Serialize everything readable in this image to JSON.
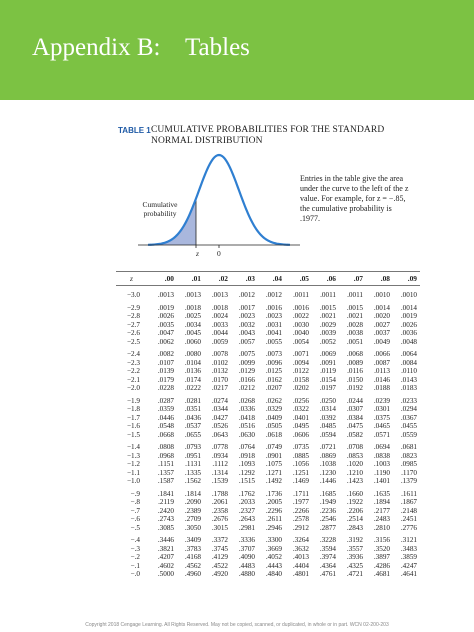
{
  "banner": {
    "title": "Appendix B:    Tables"
  },
  "table_label": "TABLE 1",
  "table_caption": "CUMULATIVE PROBABILITIES FOR THE STANDARD NORMAL DISTRIBUTION",
  "figure": {
    "entries_note": "Entries in the table give the area under the curve to the left of the z value. For example, for z = −.85, the cumulative probability is .1977.",
    "cumulative_label": "Cumulative probability",
    "z_label": "z",
    "zero_label": "0",
    "colors": {
      "curve": "#2f7fd1",
      "shade": "#a9b7dd"
    }
  },
  "table": {
    "z_header": "z",
    "headers": [
      ".00",
      ".01",
      ".02",
      ".03",
      ".04",
      ".05",
      ".06",
      ".07",
      ".08",
      ".09"
    ],
    "groups": [
      [
        {
          "z": "−3.0",
          "v": [
            ".0013",
            ".0013",
            ".0013",
            ".0012",
            ".0012",
            ".0011",
            ".0011",
            ".0011",
            ".0010",
            ".0010"
          ]
        }
      ],
      [
        {
          "z": "−2.9",
          "v": [
            ".0019",
            ".0018",
            ".0018",
            ".0017",
            ".0016",
            ".0016",
            ".0015",
            ".0015",
            ".0014",
            ".0014"
          ]
        },
        {
          "z": "−2.8",
          "v": [
            ".0026",
            ".0025",
            ".0024",
            ".0023",
            ".0023",
            ".0022",
            ".0021",
            ".0021",
            ".0020",
            ".0019"
          ]
        },
        {
          "z": "−2.7",
          "v": [
            ".0035",
            ".0034",
            ".0033",
            ".0032",
            ".0031",
            ".0030",
            ".0029",
            ".0028",
            ".0027",
            ".0026"
          ]
        },
        {
          "z": "−2.6",
          "v": [
            ".0047",
            ".0045",
            ".0044",
            ".0043",
            ".0041",
            ".0040",
            ".0039",
            ".0038",
            ".0037",
            ".0036"
          ]
        },
        {
          "z": "−2.5",
          "v": [
            ".0062",
            ".0060",
            ".0059",
            ".0057",
            ".0055",
            ".0054",
            ".0052",
            ".0051",
            ".0049",
            ".0048"
          ]
        }
      ],
      [
        {
          "z": "−2.4",
          "v": [
            ".0082",
            ".0080",
            ".0078",
            ".0075",
            ".0073",
            ".0071",
            ".0069",
            ".0068",
            ".0066",
            ".0064"
          ]
        },
        {
          "z": "−2.3",
          "v": [
            ".0107",
            ".0104",
            ".0102",
            ".0099",
            ".0096",
            ".0094",
            ".0091",
            ".0089",
            ".0087",
            ".0084"
          ]
        },
        {
          "z": "−2.2",
          "v": [
            ".0139",
            ".0136",
            ".0132",
            ".0129",
            ".0125",
            ".0122",
            ".0119",
            ".0116",
            ".0113",
            ".0110"
          ]
        },
        {
          "z": "−2.1",
          "v": [
            ".0179",
            ".0174",
            ".0170",
            ".0166",
            ".0162",
            ".0158",
            ".0154",
            ".0150",
            ".0146",
            ".0143"
          ]
        },
        {
          "z": "−2.0",
          "v": [
            ".0228",
            ".0222",
            ".0217",
            ".0212",
            ".0207",
            ".0202",
            ".0197",
            ".0192",
            ".0188",
            ".0183"
          ]
        }
      ],
      [
        {
          "z": "−1.9",
          "v": [
            ".0287",
            ".0281",
            ".0274",
            ".0268",
            ".0262",
            ".0256",
            ".0250",
            ".0244",
            ".0239",
            ".0233"
          ]
        },
        {
          "z": "−1.8",
          "v": [
            ".0359",
            ".0351",
            ".0344",
            ".0336",
            ".0329",
            ".0322",
            ".0314",
            ".0307",
            ".0301",
            ".0294"
          ]
        },
        {
          "z": "−1.7",
          "v": [
            ".0446",
            ".0436",
            ".0427",
            ".0418",
            ".0409",
            ".0401",
            ".0392",
            ".0384",
            ".0375",
            ".0367"
          ]
        },
        {
          "z": "−1.6",
          "v": [
            ".0548",
            ".0537",
            ".0526",
            ".0516",
            ".0505",
            ".0495",
            ".0485",
            ".0475",
            ".0465",
            ".0455"
          ]
        },
        {
          "z": "−1.5",
          "v": [
            ".0668",
            ".0655",
            ".0643",
            ".0630",
            ".0618",
            ".0606",
            ".0594",
            ".0582",
            ".0571",
            ".0559"
          ]
        }
      ],
      [
        {
          "z": "−1.4",
          "v": [
            ".0808",
            ".0793",
            ".0778",
            ".0764",
            ".0749",
            ".0735",
            ".0721",
            ".0708",
            ".0694",
            ".0681"
          ]
        },
        {
          "z": "−1.3",
          "v": [
            ".0968",
            ".0951",
            ".0934",
            ".0918",
            ".0901",
            ".0885",
            ".0869",
            ".0853",
            ".0838",
            ".0823"
          ]
        },
        {
          "z": "−1.2",
          "v": [
            ".1151",
            ".1131",
            ".1112",
            ".1093",
            ".1075",
            ".1056",
            ".1038",
            ".1020",
            ".1003",
            ".0985"
          ]
        },
        {
          "z": "−1.1",
          "v": [
            ".1357",
            ".1335",
            ".1314",
            ".1292",
            ".1271",
            ".1251",
            ".1230",
            ".1210",
            ".1190",
            ".1170"
          ]
        },
        {
          "z": "−1.0",
          "v": [
            ".1587",
            ".1562",
            ".1539",
            ".1515",
            ".1492",
            ".1469",
            ".1446",
            ".1423",
            ".1401",
            ".1379"
          ]
        }
      ],
      [
        {
          "z": "−.9",
          "v": [
            ".1841",
            ".1814",
            ".1788",
            ".1762",
            ".1736",
            ".1711",
            ".1685",
            ".1660",
            ".1635",
            ".1611"
          ]
        },
        {
          "z": "−.8",
          "v": [
            ".2119",
            ".2090",
            ".2061",
            ".2033",
            ".2005",
            ".1977",
            ".1949",
            ".1922",
            ".1894",
            ".1867"
          ]
        },
        {
          "z": "−.7",
          "v": [
            ".2420",
            ".2389",
            ".2358",
            ".2327",
            ".2296",
            ".2266",
            ".2236",
            ".2206",
            ".2177",
            ".2148"
          ]
        },
        {
          "z": "−.6",
          "v": [
            ".2743",
            ".2709",
            ".2676",
            ".2643",
            ".2611",
            ".2578",
            ".2546",
            ".2514",
            ".2483",
            ".2451"
          ]
        },
        {
          "z": "−.5",
          "v": [
            ".3085",
            ".3050",
            ".3015",
            ".2981",
            ".2946",
            ".2912",
            ".2877",
            ".2843",
            ".2810",
            ".2776"
          ]
        }
      ],
      [
        {
          "z": "−.4",
          "v": [
            ".3446",
            ".3409",
            ".3372",
            ".3336",
            ".3300",
            ".3264",
            ".3228",
            ".3192",
            ".3156",
            ".3121"
          ]
        },
        {
          "z": "−.3",
          "v": [
            ".3821",
            ".3783",
            ".3745",
            ".3707",
            ".3669",
            ".3632",
            ".3594",
            ".3557",
            ".3520",
            ".3483"
          ]
        },
        {
          "z": "−.2",
          "v": [
            ".4207",
            ".4168",
            ".4129",
            ".4090",
            ".4052",
            ".4013",
            ".3974",
            ".3936",
            ".3897",
            ".3859"
          ]
        },
        {
          "z": "−.1",
          "v": [
            ".4602",
            ".4562",
            ".4522",
            ".4483",
            ".4443",
            ".4404",
            ".4364",
            ".4325",
            ".4286",
            ".4247"
          ]
        },
        {
          "z": "−.0",
          "v": [
            ".5000",
            ".4960",
            ".4920",
            ".4880",
            ".4840",
            ".4801",
            ".4761",
            ".4721",
            ".4681",
            ".4641"
          ]
        }
      ]
    ]
  },
  "copyright": "Copyright 2018 Cengage Learning. All Rights Reserved. May not be copied, scanned, or duplicated, in whole or in part.  WCN 02-200-203"
}
